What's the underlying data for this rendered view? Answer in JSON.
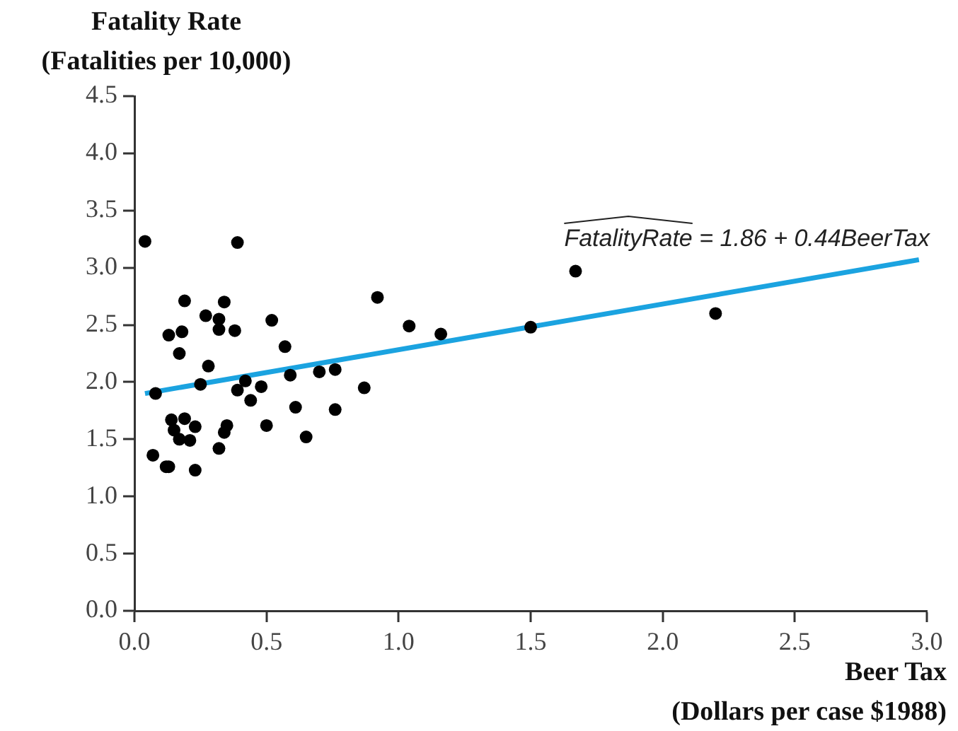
{
  "chart_data": {
    "type": "scatter",
    "ylabel": "Fatality Rate\n(Fatalities per 10,000)",
    "xlabel": "Beer Tax\n(Dollars per case $1988)",
    "xlim": [
      0,
      3
    ],
    "xticks": [
      {
        "value": 0,
        "label": "0.0"
      },
      0.5,
      {
        "value": 1,
        "label": "1.0"
      },
      1.5,
      {
        "value": 2,
        "label": "2.0"
      },
      2.5,
      {
        "value": 3,
        "label": "3.0"
      }
    ],
    "ylim": [
      0,
      4.5
    ],
    "yticks": [
      {
        "value": 0,
        "label": "0.0"
      },
      0.5,
      {
        "value": 1,
        "label": "1.0"
      },
      1.5,
      {
        "value": 2,
        "label": "2.0"
      },
      2.5,
      {
        "value": 3,
        "label": "3.0"
      },
      3.5,
      {
        "value": 4,
        "label": "4.0"
      },
      4.5
    ],
    "grid": false,
    "legend": false,
    "marker": "circle",
    "annotations": [
      "FatalityRate = 1.86 + 0.44BeerTax"
    ],
    "series": [
      {
        "color": "#000000",
        "x": [
          0.04,
          0.39,
          0.19,
          0.34,
          0.27,
          0.32,
          0.52,
          0.13,
          0.18,
          0.32,
          0.38,
          0.17,
          0.57,
          0.28,
          0.59,
          0.7,
          0.76,
          0.42,
          0.25,
          0.08,
          0.39,
          0.48,
          0.87,
          0.44,
          0.61,
          0.76,
          0.14,
          0.19,
          0.15,
          0.23,
          0.35,
          0.34,
          0.5,
          0.17,
          0.21,
          0.65,
          0.32,
          0.07,
          0.12,
          0.13,
          0.23,
          0.92,
          1.04,
          1.16,
          1.5,
          1.67,
          2.2
        ],
        "values": [
          3.23,
          3.22,
          2.71,
          2.7,
          2.58,
          2.55,
          2.54,
          2.41,
          2.44,
          2.46,
          2.45,
          2.25,
          2.31,
          2.14,
          2.06,
          2.09,
          2.11,
          2.01,
          1.98,
          1.9,
          1.93,
          1.96,
          1.95,
          1.84,
          1.78,
          1.76,
          1.67,
          1.68,
          1.58,
          1.61,
          1.62,
          1.56,
          1.62,
          1.5,
          1.49,
          1.52,
          1.42,
          1.36,
          1.26,
          1.26,
          1.23,
          2.74,
          2.49,
          2.42,
          2.48,
          2.97,
          2.6
        ]
      },
      {
        "type": "line",
        "color": "#1ba3e0",
        "marker": "none",
        "x": [
          0.04,
          2.97
        ],
        "values": [
          1.9,
          3.07
        ]
      }
    ]
  }
}
